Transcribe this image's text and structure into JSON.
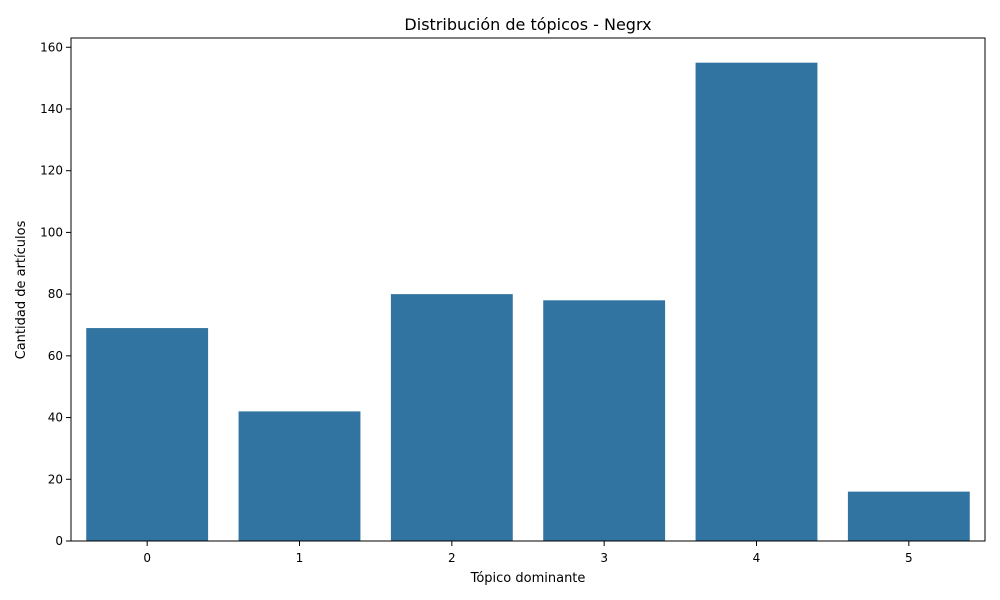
{
  "colors": {
    "bar": "#3274a1",
    "axis": "#000000",
    "background": "#ffffff"
  },
  "chart_data": {
    "type": "bar",
    "title": "Distribución de tópicos - Negrx",
    "xlabel": "Tópico dominante",
    "ylabel": "Cantidad de artículos",
    "categories": [
      "0",
      "1",
      "2",
      "3",
      "4",
      "5"
    ],
    "values": [
      69,
      42,
      80,
      78,
      155,
      16
    ],
    "ylim": [
      0,
      163
    ],
    "yticks": [
      0,
      20,
      40,
      60,
      80,
      100,
      120,
      140,
      160
    ],
    "grid": false,
    "legend": "none"
  }
}
